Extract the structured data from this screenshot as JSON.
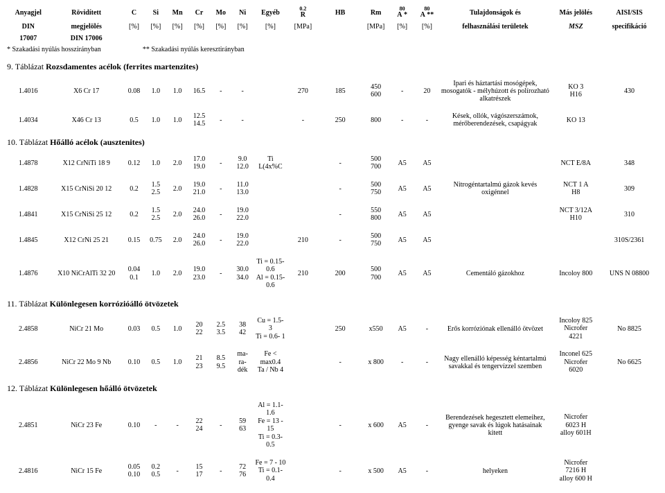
{
  "header": {
    "cols": [
      {
        "top": "Anyagjel",
        "bot": "DIN",
        "w": "w-anyag",
        "topb": true,
        "botb": true
      },
      {
        "top": "Rövidített",
        "bot": "megjelölés",
        "w": "w-rov",
        "topb": true,
        "botb": true
      },
      {
        "top": "C",
        "bot": "[%]",
        "w": "w-c",
        "topb": true,
        "botb": false
      },
      {
        "top": "Si",
        "bot": "[%]",
        "w": "w-si",
        "topb": true,
        "botb": false
      },
      {
        "top": "Mn",
        "bot": "[%]",
        "w": "w-mn",
        "topb": true,
        "botb": false
      },
      {
        "top": "Cr",
        "bot": "[%]",
        "w": "w-cr",
        "topb": true,
        "botb": false
      },
      {
        "top": "Mo",
        "bot": "[%]",
        "w": "w-mo",
        "topb": true,
        "botb": false
      },
      {
        "top": "Ni",
        "bot": "[%]",
        "w": "w-ni",
        "topb": true,
        "botb": false
      },
      {
        "top": "Egyéb",
        "bot": "[%]",
        "w": "w-egy",
        "topb": true,
        "botb": false
      },
      {
        "top": "R",
        "bot": "[MPa]",
        "w": "w-r",
        "topb": true,
        "botb": false,
        "sup": "0.2"
      },
      {
        "top": "HB",
        "bot": "",
        "w": "w-hb",
        "topb": true,
        "botb": false
      },
      {
        "top": "Rm",
        "bot": "[MPa]",
        "w": "w-rm",
        "topb": true,
        "botb": false
      },
      {
        "top": "A",
        "bot": "[%]",
        "w": "w-a1",
        "topb": true,
        "botb": false,
        "sup": "80",
        "sub": "*"
      },
      {
        "top": "A",
        "bot": "[%]",
        "w": "w-a2",
        "topb": true,
        "botb": false,
        "sup": "80",
        "sub": "**"
      },
      {
        "top": "Tulajdonságok és",
        "bot": "felhasználási területek",
        "w": "w-tul",
        "topb": true,
        "botb": true
      },
      {
        "top": "Más jelölés",
        "bot": "MSZ",
        "w": "w-mas",
        "topb": true,
        "botb": true,
        "boti": true
      },
      {
        "top": "AISI/SIS",
        "bot": "specifikáció",
        "w": "w-ais",
        "topb": true,
        "botb": true
      }
    ],
    "bottom_row": {
      "anyag": "17007",
      "rov": "DIN 17006"
    },
    "footnote": {
      "star": "* Szakadási nyúlás hosszirányban",
      "dstar": "** Szakadási nyúlás keresztirányban"
    }
  },
  "tables": [
    {
      "heading_num": "9. Táblázat",
      "heading_title": "Rozsdamentes acélok (ferrites martenzites)",
      "rows": [
        {
          "c": [
            "1.4016",
            "X6 Cr 17",
            "0.08",
            "1.0",
            "1.0",
            "16.5",
            "-",
            "-",
            "",
            "270",
            "185",
            "450\n600",
            "-",
            "20",
            "Ipari és háztartási mosógépek, mosogatók - mélyhúzott és polírozható alkatrészek",
            "KO 3\nH16",
            "430"
          ]
        },
        {
          "c": [
            "1.4034",
            "X46 Cr 13",
            "0.5",
            "1.0",
            "1.0",
            "12.5\n14.5",
            "-",
            "-",
            "",
            "-",
            "250",
            "800",
            "-",
            "-",
            "Kések, ollók, vágószerszámok, mérőberendezések, csapágyak",
            "KO 13",
            ""
          ]
        }
      ]
    },
    {
      "heading_num": "10. Táblázat",
      "heading_title": "Hőálló acélok (ausztenites)",
      "rows": [
        {
          "c": [
            "1.4878",
            "X12 CrNiTi 18 9",
            "0.12",
            "1.0",
            "2.0",
            "17.0\n19.0",
            "-",
            "9.0\n12.0",
            "Ti L(4x%C",
            "",
            "-",
            "500\n700",
            "A5",
            "A5",
            "",
            "NCT E/8A",
            "348"
          ]
        },
        {
          "c": [
            "1.4828",
            "X15 CrNiSi 20 12",
            "0.2",
            "1.5\n2.5",
            "2.0",
            "19.0\n21.0",
            "-",
            "11.0\n13.0",
            "",
            "",
            "-",
            "500\n750",
            "A5",
            "A5",
            "Nitrogéntartalmú gázok kevés oxigénnel",
            "NCT 1 A\nH8",
            "309"
          ]
        },
        {
          "c": [
            "1.4841",
            "X15 CrNiSi 25 12",
            "0.2",
            "1.5\n2.5",
            "2.0",
            "24.0\n26.0",
            "-",
            "19.0\n22.0",
            "",
            "",
            "-",
            "550\n800",
            "A5",
            "A5",
            "",
            "NCT 3/12A\nH10",
            "310"
          ]
        },
        {
          "c": [
            "1.4845",
            "X12 CrNi 25 21",
            "0.15",
            "0.75",
            "2.0",
            "24.0\n26.0",
            "-",
            "19.0\n22.0",
            "",
            "210",
            "-",
            "500\n750",
            "A5",
            "A5",
            "",
            "",
            "310S/2361"
          ]
        },
        {
          "c": [
            "1.4876",
            "X10 NiCrAlTi 32 20",
            "0.04\n0.1",
            "1.0",
            "2.0",
            "19.0\n23.0",
            "-",
            "30.0\n34.0",
            "Ti = 0.15-0.6\nAl = 0.15-0.6",
            "210",
            "200",
            "500\n700",
            "A5",
            "A5",
            "Cementáló gázokhoz",
            "Incoloy 800",
            "UNS N 08800"
          ]
        }
      ]
    },
    {
      "heading_num": "11. Táblázat",
      "heading_title": "Különlegesen korrózióálló ötvözetek",
      "rows": [
        {
          "c": [
            "2.4858",
            "NiCr 21 Mo",
            "0.03",
            "0.5",
            "1.0",
            "20\n22",
            "2.5\n3.5",
            "38\n42",
            "Cu = 1.5- 3\nTi = 0.6- 1",
            "",
            "250",
            "x550",
            "A5",
            "-",
            "Erős korróziónak ellenálló ötvözet",
            "Incoloy 825\nNicrofer\n4221",
            "No 8825"
          ]
        },
        {
          "c": [
            "2.4856",
            "NiCr 22 Mo 9 Nb",
            "0.10",
            "0.5",
            "1.0",
            "21\n23",
            "8.5\n9.5",
            "ma-\nra-\ndék",
            "Fe < max0.4\nTa / Nb 4",
            "",
            "-",
            "x 800",
            "-",
            "-",
            "Nagy ellenálló képesség kéntartalmú savakkal és tengervízzel szemben",
            "Inconel 625\nNicrofer\n6020",
            "No 6625"
          ]
        }
      ]
    },
    {
      "heading_num": "12. Táblázat",
      "heading_title": "Különlegesen hőálló ötvözetek",
      "rows": [
        {
          "c": [
            "2.4851",
            "NiCr 23 Fe",
            "0.10",
            "-",
            "-",
            "22\n24",
            "-",
            "59\n63",
            "Al = 1.1-1.6\nFe = 13 - 15\nTi = 0.3-0.5",
            "",
            "-",
            "x 600",
            "A5",
            "-",
            "Berendezések hegesztett elemeihez, gyenge savak és lúgok hatásainak kitett",
            "Nicrofer\n6023 H\nalloy 601H",
            ""
          ]
        },
        {
          "c": [
            "2.4816",
            "NiCr 15 Fe",
            "0.05\n0.10",
            "0.2\n0.5",
            "-",
            "15\n17",
            "-",
            "72\n76",
            "Fe = 7 - 10\nTi = 0.1-0.4",
            "",
            "-",
            "x 500",
            "A5",
            "-",
            "helyeken",
            "Nicrofer\n7216 H\nalloy 600 H",
            ""
          ]
        }
      ]
    }
  ]
}
